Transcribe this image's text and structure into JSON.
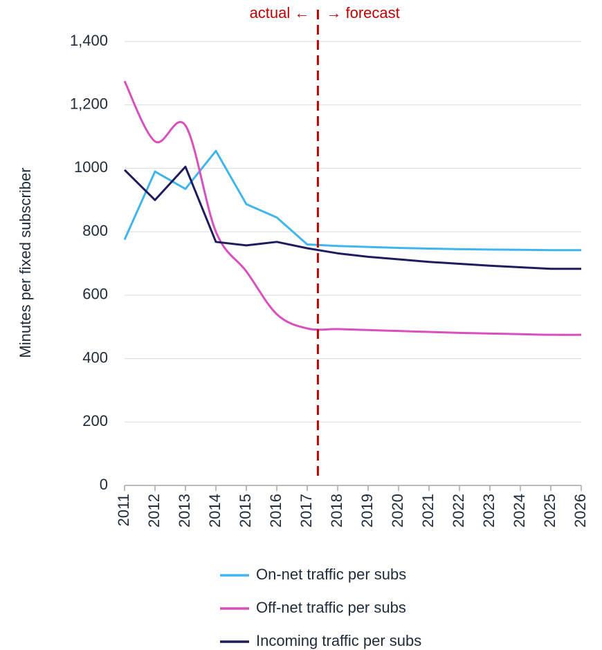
{
  "chart_data": {
    "type": "line",
    "y_label": "Minutes per fixed subscriber",
    "annotations": {
      "left": "actual ←",
      "right": "→ forecast"
    },
    "forecast_start": 2017.35,
    "divider_color": "#c00000",
    "x": [
      2011,
      2012,
      2013,
      2014,
      2015,
      2016,
      2017,
      2018,
      2019,
      2020,
      2021,
      2022,
      2023,
      2024,
      2025,
      2026
    ],
    "xticks": [
      2011,
      2012,
      2013,
      2014,
      2015,
      2016,
      2017,
      2018,
      2019,
      2020,
      2021,
      2022,
      2023,
      2024,
      2025,
      2026
    ],
    "xlim": [
      2011,
      2026
    ],
    "ylim": [
      0,
      1400
    ],
    "yticks": [
      0,
      200,
      400,
      600,
      800,
      1000,
      {
        "value": 1200,
        "label": "1,200"
      },
      {
        "value": 1400,
        "label": "1,400"
      }
    ],
    "yticks_note_free": true,
    "grid": true,
    "series": [
      {
        "name": "On-net traffic per subs",
        "color": "#3fb5f0",
        "smooth": false,
        "values": [
          775,
          990,
          935,
          1055,
          887,
          845,
          760,
          755,
          752,
          749,
          747,
          745,
          744,
          743,
          742,
          742
        ]
      },
      {
        "name": "Off-net traffic per subs",
        "color": "#d94fbd",
        "smooth": true,
        "values": [
          1275,
          1085,
          1135,
          800,
          675,
          540,
          495,
          493,
          490,
          487,
          484,
          481,
          479,
          477,
          475,
          475
        ]
      },
      {
        "name": "Incoming traffic per subs",
        "color": "#1e1b5e",
        "smooth": false,
        "values": [
          995,
          900,
          1005,
          768,
          757,
          768,
          748,
          732,
          721,
          713,
          705,
          699,
          693,
          688,
          683,
          683
        ]
      }
    ]
  }
}
